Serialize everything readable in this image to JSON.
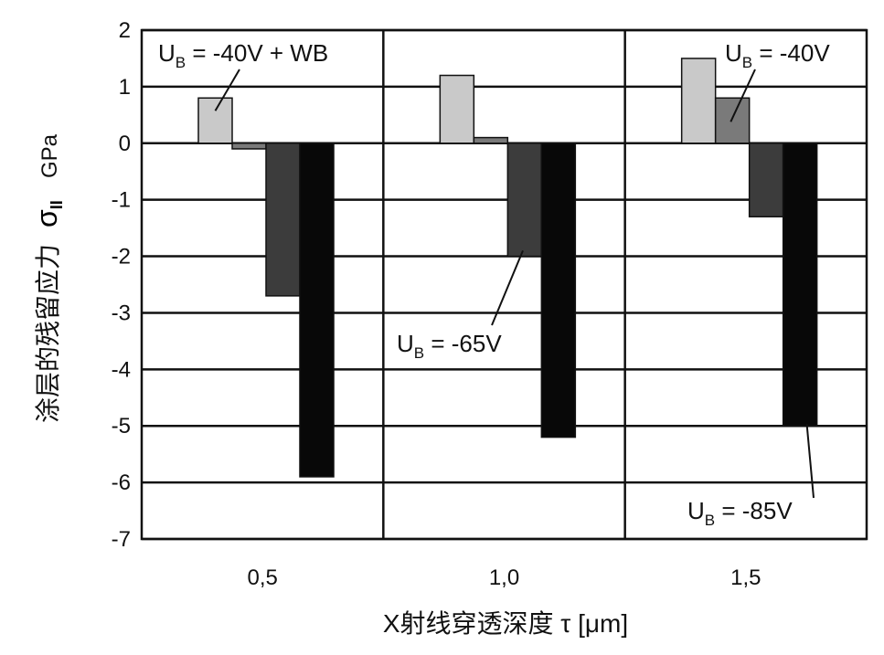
{
  "chart_data": {
    "type": "bar",
    "categories": [
      "0,5",
      "1,0",
      "1,5"
    ],
    "xlabel": "X射线穿透深度 τ [μm]",
    "ylabel_text": "涂层的残留应力",
    "ylabel_symbol": "σ",
    "ylabel_symbol_sub": "II",
    "ylabel_unit": "GPa",
    "ylim": [
      -7,
      2
    ],
    "yticks": [
      2,
      1,
      0,
      -1,
      -2,
      -3,
      -4,
      -5,
      -6,
      -7
    ],
    "grid": true,
    "series": [
      {
        "name": "U_B = -40V + WB",
        "values": [
          0.8,
          1.2,
          1.5
        ],
        "color": "#c9c9c9"
      },
      {
        "name": "U_B = -40V",
        "values": [
          -0.1,
          0.1,
          0.8
        ],
        "color": "#7a7a7a"
      },
      {
        "name": "U_B = -65V",
        "values": [
          -2.7,
          -2.0,
          -1.3
        ],
        "color": "#3c3c3c"
      },
      {
        "name": "U_B = -85V",
        "values": [
          -5.9,
          -5.2,
          -5.0
        ],
        "color": "#080808"
      }
    ],
    "annotations": [
      {
        "main": "U",
        "sub": "B",
        "rest": " = -40V + WB"
      },
      {
        "main": "U",
        "sub": "B",
        "rest": " = -40V"
      },
      {
        "main": "U",
        "sub": "B",
        "rest": " = -65V"
      },
      {
        "main": "U",
        "sub": "B",
        "rest": " = -85V"
      }
    ]
  }
}
